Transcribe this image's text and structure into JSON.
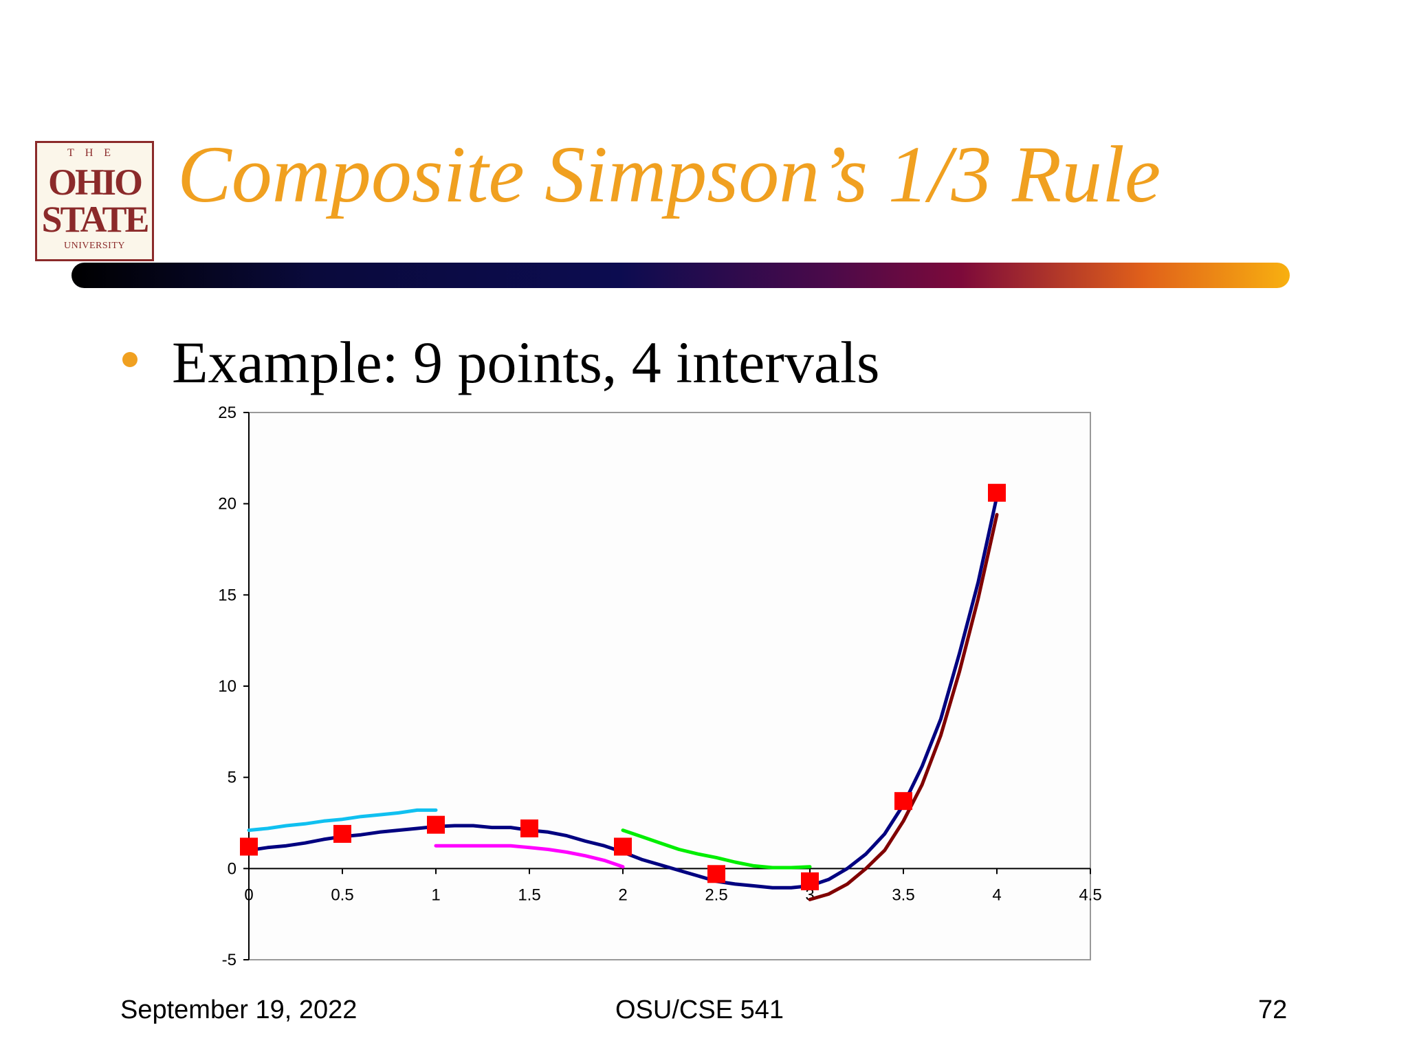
{
  "logo": {
    "the": "THE",
    "ohio": "OHIO",
    "state": "STATE",
    "university": "UNIVERSITY"
  },
  "slide": {
    "title": "Composite Simpson’s 1/3 Rule",
    "bullet": "Example: 9 points, 4 intervals"
  },
  "footer": {
    "date": "September 19, 2022",
    "course": "OSU/CSE 541",
    "page": "72"
  },
  "colors": {
    "title": "#f0a020",
    "bullet": "#f0a020",
    "function_curve": "#000080",
    "data_points": "#ff0000",
    "parabola_1": "#10c0f0",
    "parabola_2": "#ff00ff",
    "parabola_3": "#00ee00",
    "parabola_4": "#800000"
  },
  "chart_data": {
    "type": "line",
    "title": "",
    "xlabel": "",
    "ylabel": "",
    "xlim": [
      0,
      4.5
    ],
    "ylim": [
      -5,
      25
    ],
    "x_ticks": [
      "0",
      "0.5",
      "1",
      "1.5",
      "2",
      "2.5",
      "3",
      "3.5",
      "4",
      "4.5"
    ],
    "y_ticks": [
      "-5",
      "0",
      "5",
      "10",
      "15",
      "20",
      "25"
    ],
    "grid": false,
    "legend": "none",
    "series": [
      {
        "type": "line",
        "color": "#000080",
        "points": [
          [
            0,
            1.0
          ],
          [
            0.1,
            1.15
          ],
          [
            0.2,
            1.25
          ],
          [
            0.3,
            1.4
          ],
          [
            0.4,
            1.6
          ],
          [
            0.5,
            1.75
          ],
          [
            0.6,
            1.85
          ],
          [
            0.7,
            2.0
          ],
          [
            0.8,
            2.1
          ],
          [
            0.9,
            2.2
          ],
          [
            1.0,
            2.3
          ],
          [
            1.1,
            2.35
          ],
          [
            1.2,
            2.35
          ],
          [
            1.3,
            2.25
          ],
          [
            1.4,
            2.25
          ],
          [
            1.5,
            2.1
          ],
          [
            1.6,
            2.0
          ],
          [
            1.7,
            1.8
          ],
          [
            1.8,
            1.5
          ],
          [
            1.9,
            1.25
          ],
          [
            2.0,
            0.9
          ],
          [
            2.1,
            0.5
          ],
          [
            2.2,
            0.2
          ],
          [
            2.3,
            -0.1
          ],
          [
            2.4,
            -0.4
          ],
          [
            2.5,
            -0.7
          ],
          [
            2.6,
            -0.85
          ],
          [
            2.7,
            -0.95
          ],
          [
            2.8,
            -1.05
          ],
          [
            2.9,
            -1.05
          ],
          [
            3.0,
            -0.95
          ],
          [
            3.1,
            -0.6
          ],
          [
            3.2,
            0.0
          ],
          [
            3.3,
            0.8
          ],
          [
            3.4,
            1.9
          ],
          [
            3.5,
            3.5
          ],
          [
            3.6,
            5.6
          ],
          [
            3.7,
            8.2
          ],
          [
            3.8,
            11.8
          ],
          [
            3.9,
            15.7
          ],
          [
            4.0,
            20.4
          ]
        ]
      },
      {
        "type": "line",
        "color": "#10c0f0",
        "points": [
          [
            0,
            2.1
          ],
          [
            0.1,
            2.2
          ],
          [
            0.2,
            2.35
          ],
          [
            0.3,
            2.45
          ],
          [
            0.4,
            2.6
          ],
          [
            0.5,
            2.7
          ],
          [
            0.6,
            2.85
          ],
          [
            0.7,
            2.95
          ],
          [
            0.8,
            3.05
          ],
          [
            0.9,
            3.2
          ],
          [
            1.0,
            3.2
          ]
        ]
      },
      {
        "type": "line",
        "color": "#ff00ff",
        "points": [
          [
            1.0,
            1.25
          ],
          [
            1.2,
            1.25
          ],
          [
            1.4,
            1.25
          ],
          [
            1.5,
            1.15
          ],
          [
            1.6,
            1.05
          ],
          [
            1.7,
            0.9
          ],
          [
            1.8,
            0.7
          ],
          [
            1.9,
            0.45
          ],
          [
            2.0,
            0.1
          ]
        ]
      },
      {
        "type": "line",
        "color": "#00ee00",
        "points": [
          [
            2.0,
            2.1
          ],
          [
            2.1,
            1.75
          ],
          [
            2.2,
            1.4
          ],
          [
            2.3,
            1.05
          ],
          [
            2.4,
            0.8
          ],
          [
            2.5,
            0.6
          ],
          [
            2.6,
            0.35
          ],
          [
            2.7,
            0.15
          ],
          [
            2.8,
            0.05
          ],
          [
            2.9,
            0.05
          ],
          [
            3.0,
            0.1
          ]
        ]
      },
      {
        "type": "line",
        "color": "#800000",
        "points": [
          [
            3.0,
            -1.7
          ],
          [
            3.1,
            -1.4
          ],
          [
            3.2,
            -0.85
          ],
          [
            3.3,
            0.0
          ],
          [
            3.4,
            1.0
          ],
          [
            3.5,
            2.6
          ],
          [
            3.6,
            4.6
          ],
          [
            3.7,
            7.3
          ],
          [
            3.8,
            10.8
          ],
          [
            3.9,
            14.8
          ],
          [
            4.0,
            19.4
          ]
        ]
      },
      {
        "type": "scatter",
        "color": "#ff0000",
        "marker": "square",
        "points": [
          [
            0,
            1.2
          ],
          [
            0.5,
            1.9
          ],
          [
            1.0,
            2.4
          ],
          [
            1.5,
            2.2
          ],
          [
            2.0,
            1.2
          ],
          [
            2.5,
            -0.3
          ],
          [
            3.0,
            -0.7
          ],
          [
            3.5,
            3.7
          ],
          [
            4.0,
            20.6
          ]
        ]
      }
    ]
  }
}
